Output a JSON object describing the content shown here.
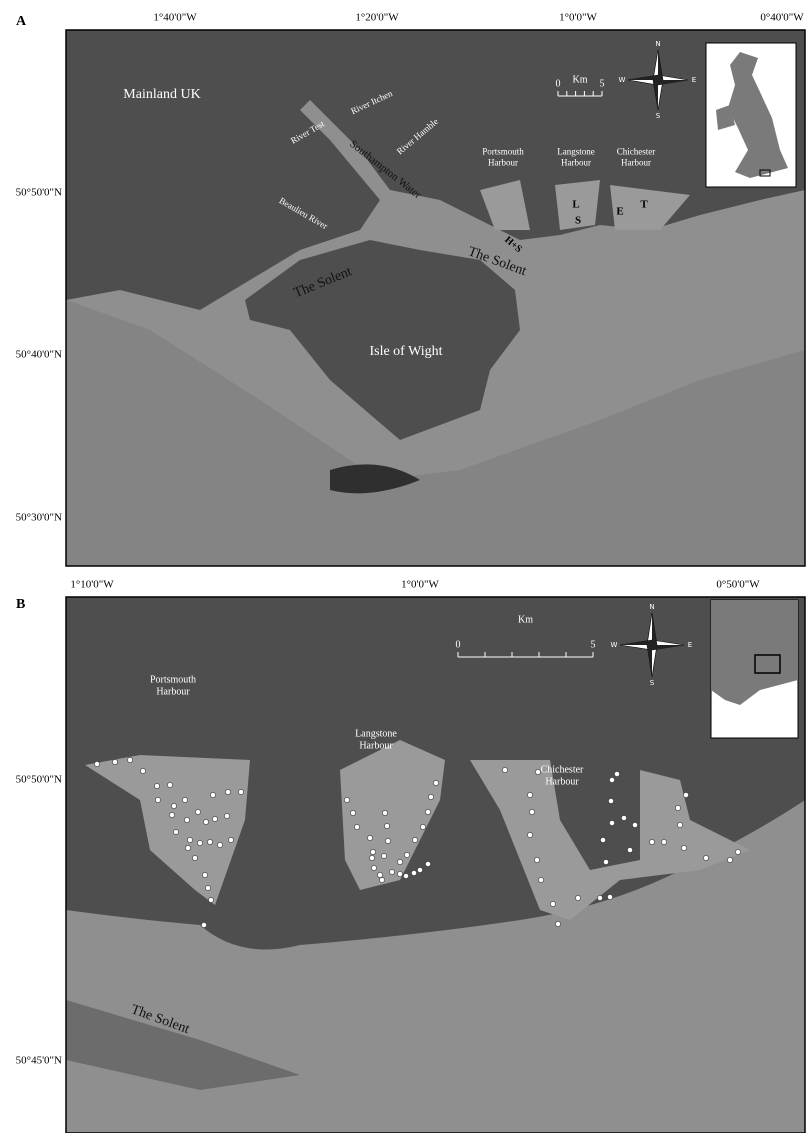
{
  "panels": [
    {
      "label": "A",
      "lon_labels": [
        "1°40'0\"W",
        "1°20'0\"W",
        "1°0'0\"W",
        "0°40'0\"W"
      ],
      "lat_labels": [
        "50°50'0\"N",
        "50°40'0\"N",
        "50°30'0\"N"
      ],
      "places": [
        {
          "lines": [
            "Mainland UK"
          ]
        },
        {
          "lines": [
            "River Test"
          ]
        },
        {
          "lines": [
            "River Itchen"
          ]
        },
        {
          "lines": [
            "River Hamble"
          ]
        },
        {
          "lines": [
            "Southampton Water"
          ]
        },
        {
          "lines": [
            "Beaulieu River"
          ]
        },
        {
          "lines": [
            "Portsmouth",
            "Harbour"
          ]
        },
        {
          "lines": [
            "Langstone",
            "Harbour"
          ]
        },
        {
          "lines": [
            "Chichester",
            "Harbour"
          ]
        },
        {
          "lines": [
            "L"
          ]
        },
        {
          "lines": [
            "S"
          ]
        },
        {
          "lines": [
            "E"
          ]
        },
        {
          "lines": [
            "T"
          ]
        },
        {
          "lines": [
            "H+S"
          ]
        },
        {
          "lines": [
            "The Solent"
          ]
        },
        {
          "lines": [
            "The Solent"
          ]
        },
        {
          "lines": [
            "Isle of Wight"
          ]
        }
      ],
      "scale": {
        "unit": "Km",
        "ticks": [
          0,
          5
        ]
      },
      "compass": [
        "N",
        "S",
        "E",
        "W"
      ]
    },
    {
      "label": "B",
      "lon_labels": [
        "1°10'0\"W",
        "1°0'0\"W",
        "0°50'0\"W"
      ],
      "lat_labels": [
        "50°50'0\"N",
        "50°45'0\"N"
      ],
      "places": [
        {
          "lines": [
            "Portsmouth",
            "Harbour"
          ]
        },
        {
          "lines": [
            "Langstone",
            "Harbour"
          ]
        },
        {
          "lines": [
            "Chichester",
            "Harbour"
          ]
        },
        {
          "lines": [
            "The Solent"
          ]
        }
      ],
      "scale": {
        "unit": "Km",
        "ticks": [
          0,
          5
        ]
      },
      "compass": [
        "N",
        "S",
        "E",
        "W"
      ]
    }
  ]
}
